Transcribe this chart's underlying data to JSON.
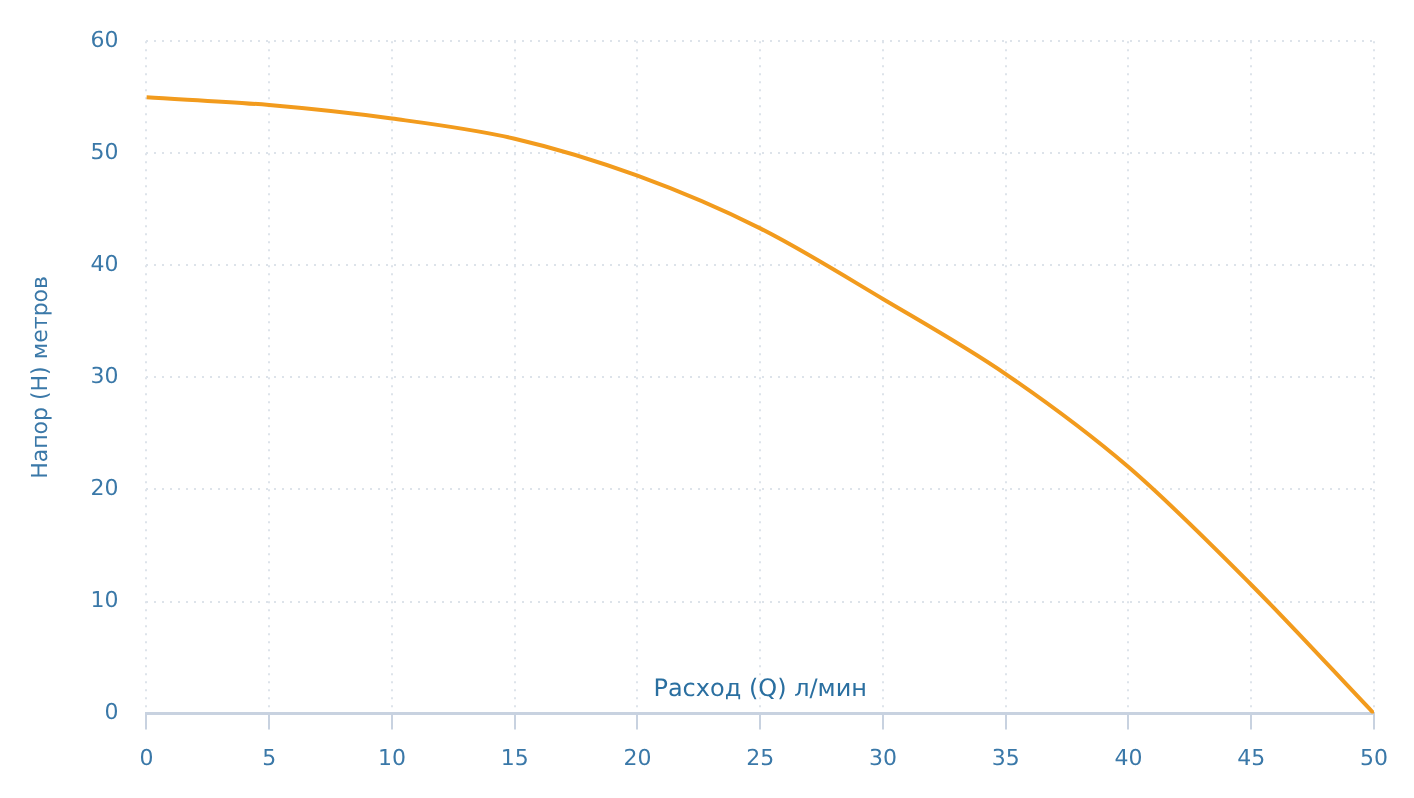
{
  "chart_data": {
    "type": "line",
    "xlabel": "Расход (Q) л/мин",
    "ylabel": "Напор (H) метров",
    "x": [
      0,
      5,
      10,
      15,
      20,
      25,
      30,
      35,
      40,
      45,
      50
    ],
    "series": [
      {
        "color": "#f29b1d",
        "values": [
          55,
          54.3,
          53.1,
          51.3,
          48,
          43.3,
          37,
          30.3,
          22,
          11.5,
          0
        ]
      }
    ],
    "xlim": [
      0,
      50
    ],
    "xticks": [
      0,
      5,
      10,
      15,
      20,
      25,
      30,
      35,
      40,
      45,
      50
    ],
    "ylim": [
      0,
      60
    ],
    "yticks": [
      0,
      10,
      20,
      30,
      40,
      50,
      60
    ],
    "grid": true,
    "legend": false,
    "marker": "none",
    "line_style": "solid"
  }
}
